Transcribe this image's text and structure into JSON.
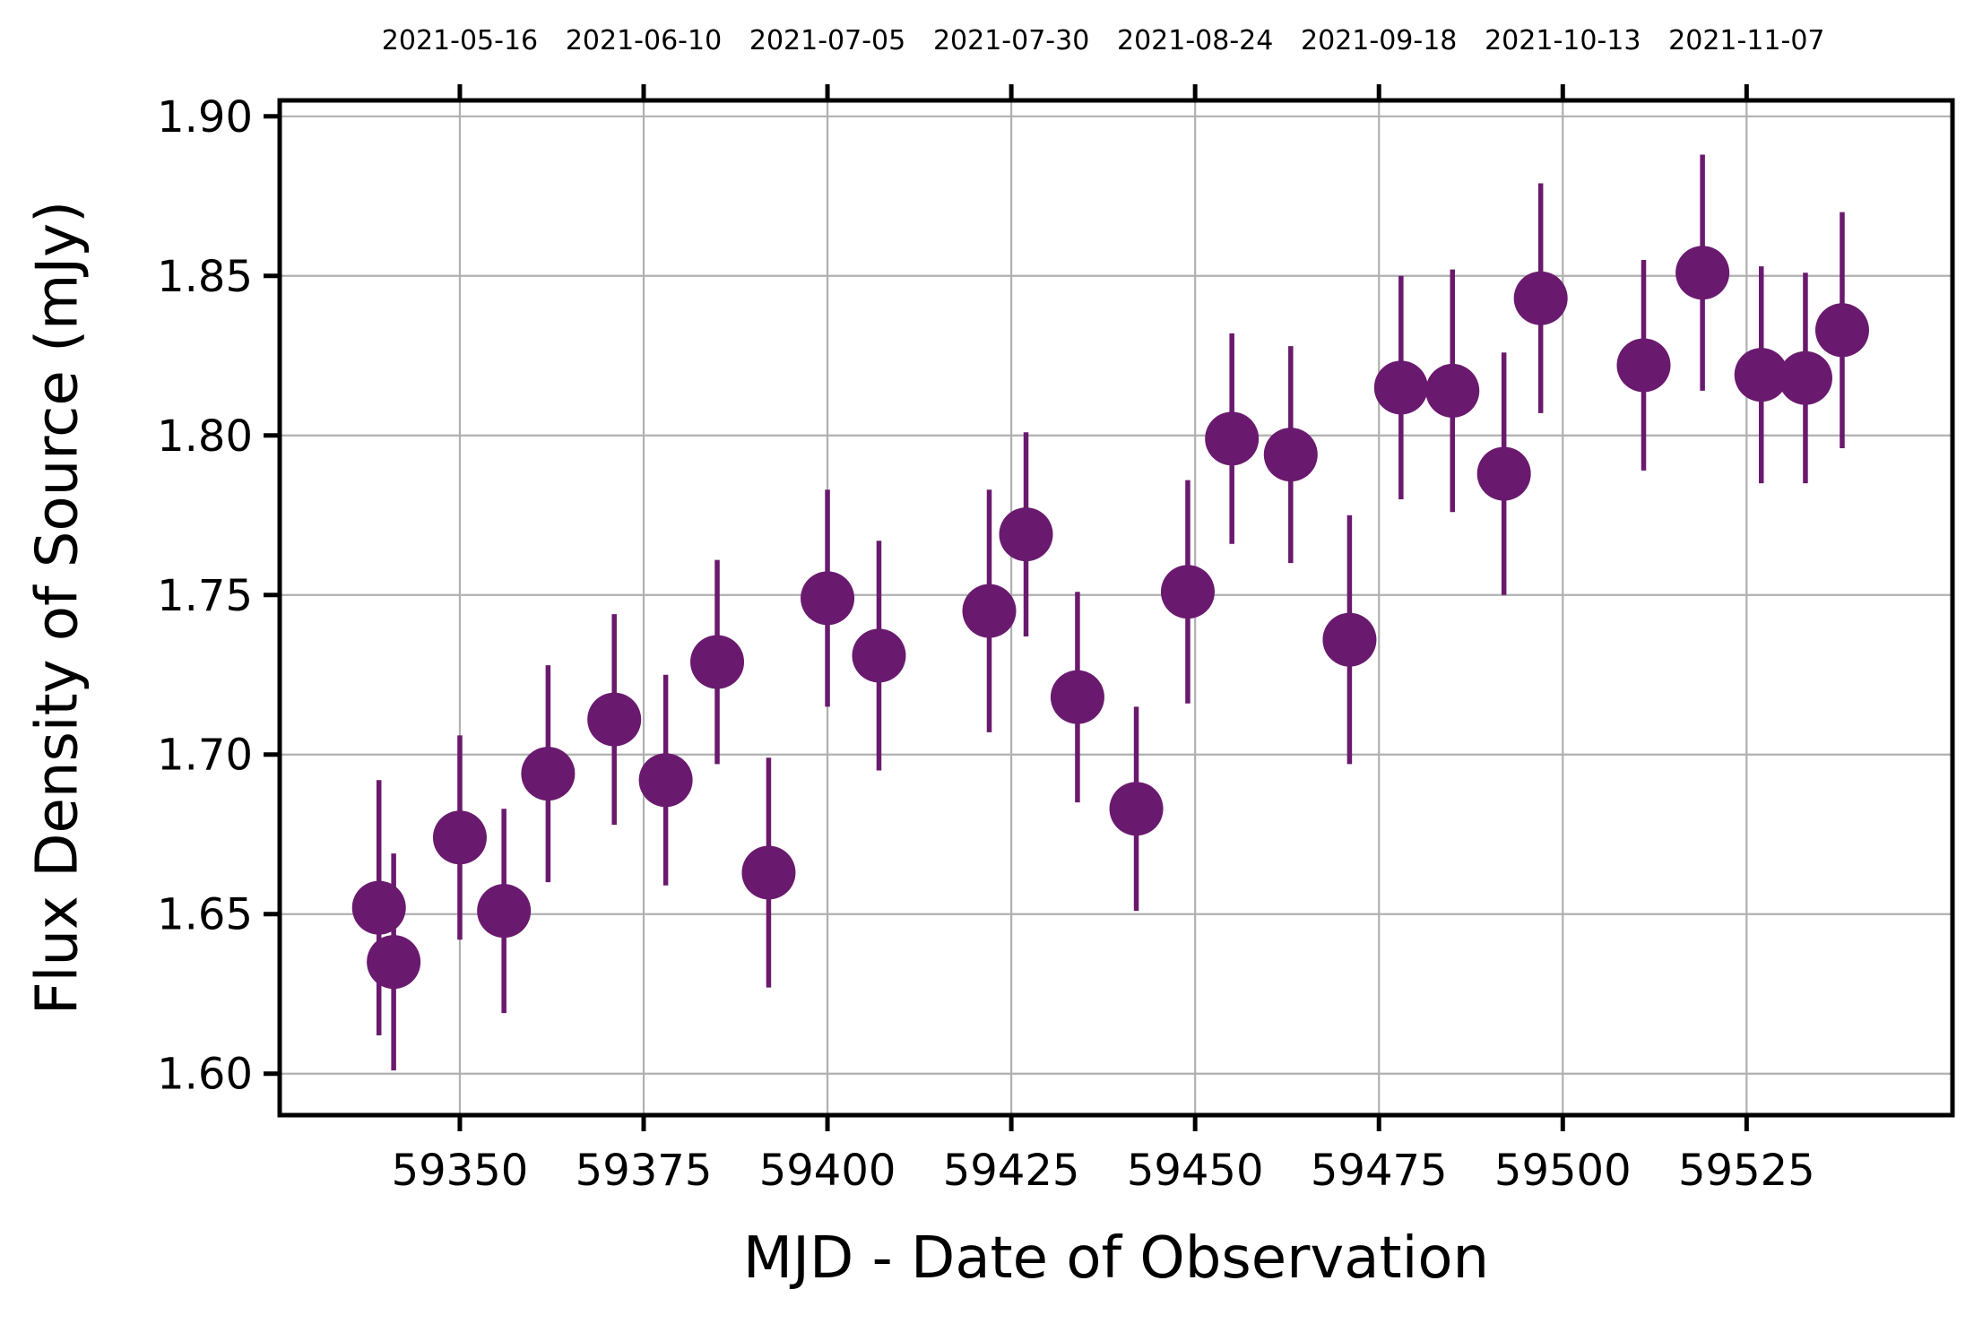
{
  "chart_data": {
    "type": "scatter",
    "title": "",
    "xlabel": "MJD - Date of Observation",
    "ylabel": "Flux Density of Source (mJy)",
    "xlim": [
      59325.5,
      59553
    ],
    "ylim": [
      1.587,
      1.905
    ],
    "grid": true,
    "x_ticks": [
      59350,
      59375,
      59400,
      59425,
      59450,
      59475,
      59500,
      59525
    ],
    "x_tick_labels": [
      "59350",
      "59375",
      "59400",
      "59425",
      "59450",
      "59475",
      "59500",
      "59525"
    ],
    "y_ticks": [
      1.6,
      1.65,
      1.7,
      1.75,
      1.8,
      1.85,
      1.9
    ],
    "y_tick_labels": [
      "1.60",
      "1.65",
      "1.70",
      "1.75",
      "1.80",
      "1.85",
      "1.90"
    ],
    "top_axis_ticks": [
      59350,
      59375,
      59400,
      59425,
      59450,
      59475,
      59500,
      59525
    ],
    "top_axis_labels": [
      "2021-05-16",
      "2021-06-10",
      "2021-07-05",
      "2021-07-30",
      "2021-08-24",
      "2021-09-18",
      "2021-10-13",
      "2021-11-07"
    ],
    "marker_color": "#6a1a6e",
    "series": [
      {
        "x": [
          59339,
          59341,
          59350,
          59356,
          59362,
          59371,
          59378,
          59385,
          59392,
          59400,
          59407,
          59422,
          59427,
          59434,
          59442,
          59449,
          59455,
          59463,
          59471,
          59478,
          59485,
          59492,
          59497,
          59511,
          59519,
          59527,
          59533,
          59538
        ],
        "y": [
          1.652,
          1.635,
          1.674,
          1.651,
          1.694,
          1.711,
          1.692,
          1.729,
          1.663,
          1.749,
          1.731,
          1.745,
          1.769,
          1.718,
          1.683,
          1.751,
          1.799,
          1.794,
          1.736,
          1.815,
          1.814,
          1.788,
          1.843,
          1.822,
          1.851,
          1.819,
          1.818,
          1.833
        ],
        "yerr": [
          0.04,
          0.034,
          0.032,
          0.032,
          0.034,
          0.033,
          0.033,
          0.032,
          0.036,
          0.034,
          0.036,
          0.038,
          0.032,
          0.033,
          0.032,
          0.035,
          0.033,
          0.034,
          0.039,
          0.035,
          0.038,
          0.038,
          0.036,
          0.033,
          0.037,
          0.034,
          0.033,
          0.037
        ]
      }
    ]
  }
}
